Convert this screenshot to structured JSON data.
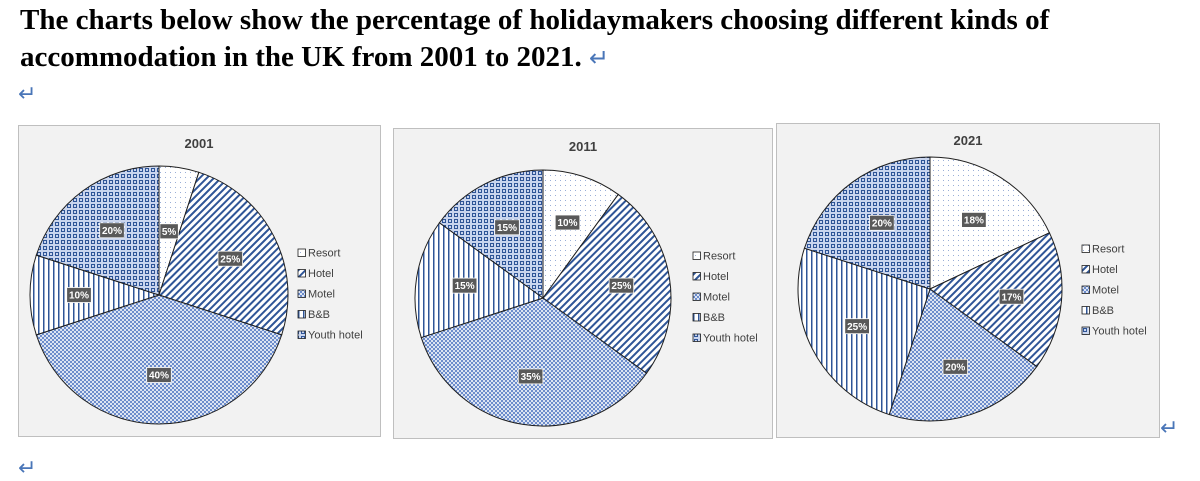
{
  "heading": {
    "line1": "The charts below show the percentage of holidaymakers choosing different kinds of",
    "line2": "accommodation in the UK from 2001 to 2021."
  },
  "colors": {
    "accent": "#4472c4",
    "pattern_blue": "#2f5597",
    "label_bg": "#595959",
    "plot_bg": "#f2f2f2",
    "border": "#bfbfbf"
  },
  "chart_data": [
    {
      "type": "pie",
      "title": "2001",
      "categories": [
        "Resort",
        "Hotel",
        "Motel",
        "B&B",
        "Youth hotel"
      ],
      "values": [
        5,
        25,
        40,
        10,
        20
      ],
      "labels": [
        "5%",
        "25%",
        "40%",
        "10%",
        "20%"
      ],
      "legend_position": "right"
    },
    {
      "type": "pie",
      "title": "2011",
      "categories": [
        "Resort",
        "Hotel",
        "Motel",
        "B&B",
        "Youth hotel"
      ],
      "values": [
        10,
        25,
        35,
        15,
        15
      ],
      "labels": [
        "10%",
        "25%",
        "35%",
        "15%",
        "15%"
      ],
      "legend_position": "right"
    },
    {
      "type": "pie",
      "title": "2021",
      "categories": [
        "Resort",
        "Hotel",
        "Motel",
        "B&B",
        "Youth hotel"
      ],
      "values": [
        18,
        17,
        20,
        25,
        20
      ],
      "labels": [
        "18%",
        "17%",
        "20%",
        "25%",
        "20%"
      ],
      "legend_position": "right"
    }
  ]
}
